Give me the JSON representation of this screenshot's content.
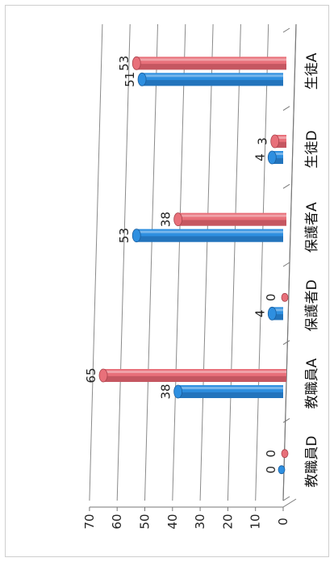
{
  "chart_data": {
    "type": "bar",
    "orientation": "rotated-90-clockwise",
    "style": "3d-cylinder",
    "categories": [
      "生徒A",
      "生徒D",
      "保護者A",
      "保護者D",
      "教職員A",
      "教職員D"
    ],
    "series": [
      {
        "values": [
          51,
          4,
          53,
          4,
          38,
          0
        ],
        "color": "#2e8fe0"
      },
      {
        "values": [
          53,
          3,
          38,
          0,
          65,
          0
        ],
        "color": "#e8707a"
      }
    ],
    "ylim": [
      0,
      70
    ],
    "yticks": [
      "0",
      "10",
      "20",
      "30",
      "40",
      "50",
      "60",
      "70"
    ],
    "grid": true,
    "data_labels": [
      [
        "51",
        "4",
        "53",
        "4",
        "38",
        "0"
      ],
      [
        "53",
        "3",
        "38",
        "0",
        "65",
        "0"
      ]
    ]
  }
}
